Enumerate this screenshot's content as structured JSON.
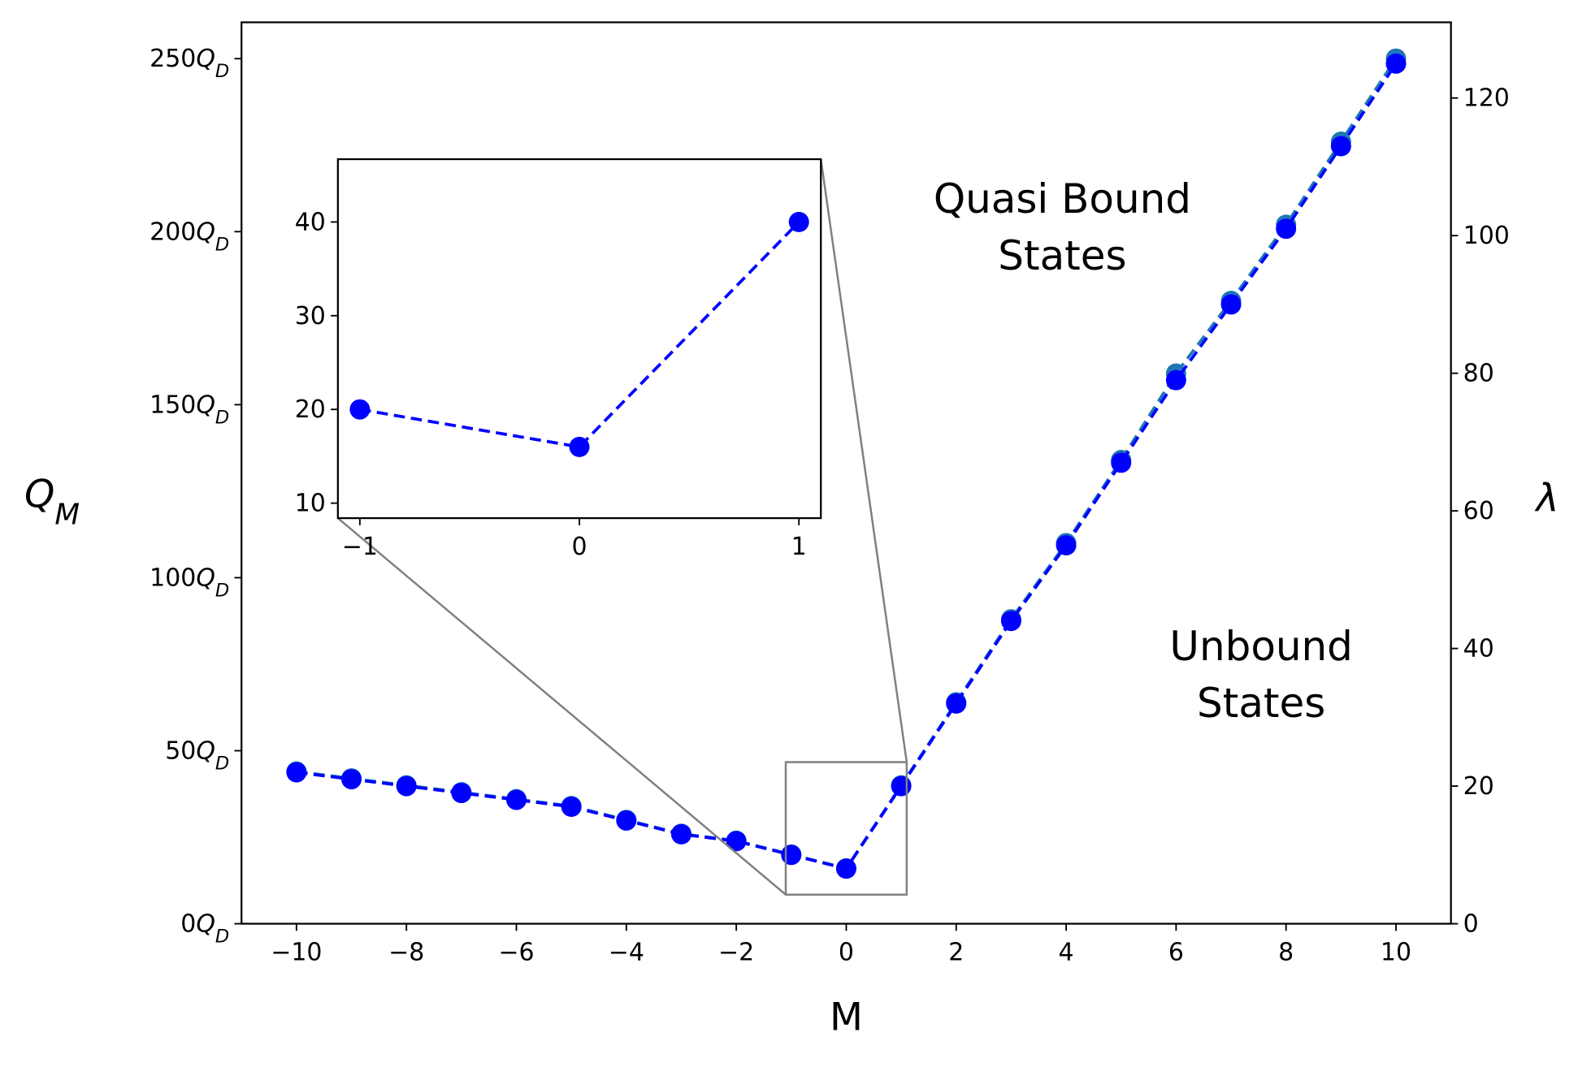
{
  "chart_data": [
    {
      "type": "line",
      "xlabel": "M",
      "ylabel": "Q_M",
      "y2label": "λ",
      "xlim": [
        -11,
        11
      ],
      "ylim": [
        0,
        260.5
      ],
      "y2lim": [
        0,
        131
      ],
      "xticks": [
        {
          "value": -10,
          "label": "−10"
        },
        {
          "value": -8,
          "label": "−8"
        },
        {
          "value": -6,
          "label": "−6"
        },
        {
          "value": -4,
          "label": "−4"
        },
        {
          "value": -2,
          "label": "−2"
        },
        0,
        2,
        4,
        6,
        8,
        10
      ],
      "yticks": [
        {
          "value": 0,
          "label": "0Q_D"
        },
        {
          "value": 50,
          "label": "50Q_D"
        },
        {
          "value": 100,
          "label": "100Q_D"
        },
        {
          "value": 150,
          "label": "150Q_D"
        },
        {
          "value": 200,
          "label": "200Q_D"
        },
        {
          "value": 250,
          "label": "250Q_D"
        }
      ],
      "y2ticks": [
        0,
        20,
        40,
        60,
        80,
        100,
        120
      ],
      "x": [
        -10,
        -9,
        -8,
        -7,
        -6,
        -5,
        -4,
        -3,
        -2,
        -1,
        0,
        1,
        2,
        3,
        4,
        5,
        6,
        7,
        8,
        9,
        10
      ],
      "series": [
        {
          "color": "#1f77b4",
          "values": [
            44,
            42,
            40,
            38,
            36,
            34,
            30,
            26,
            24,
            20,
            16,
            40,
            64,
            88,
            110,
            134,
            159,
            180,
            202,
            226,
            250
          ]
        },
        {
          "color": "#0000ff",
          "axis": "y2",
          "values": [
            22,
            21,
            20,
            19,
            18,
            17,
            15,
            13,
            12,
            10,
            8,
            20,
            32,
            44,
            55,
            67,
            79,
            90,
            101,
            113,
            125
          ]
        }
      ],
      "annotations": [
        [
          "Quasi Bound",
          "States"
        ],
        [
          "Unbound",
          "States"
        ]
      ]
    },
    {
      "type": "line",
      "xlim": [
        -1.1,
        1.1
      ],
      "ylim": [
        8.4,
        46.7
      ],
      "xticks": [
        {
          "value": -1,
          "label": "−1"
        },
        0,
        1
      ],
      "yticks": [
        10,
        20,
        30,
        40
      ],
      "x": [
        -1,
        0,
        1
      ],
      "series": [
        {
          "color": "#0000ff",
          "values": [
            20,
            16,
            40
          ]
        }
      ]
    }
  ]
}
